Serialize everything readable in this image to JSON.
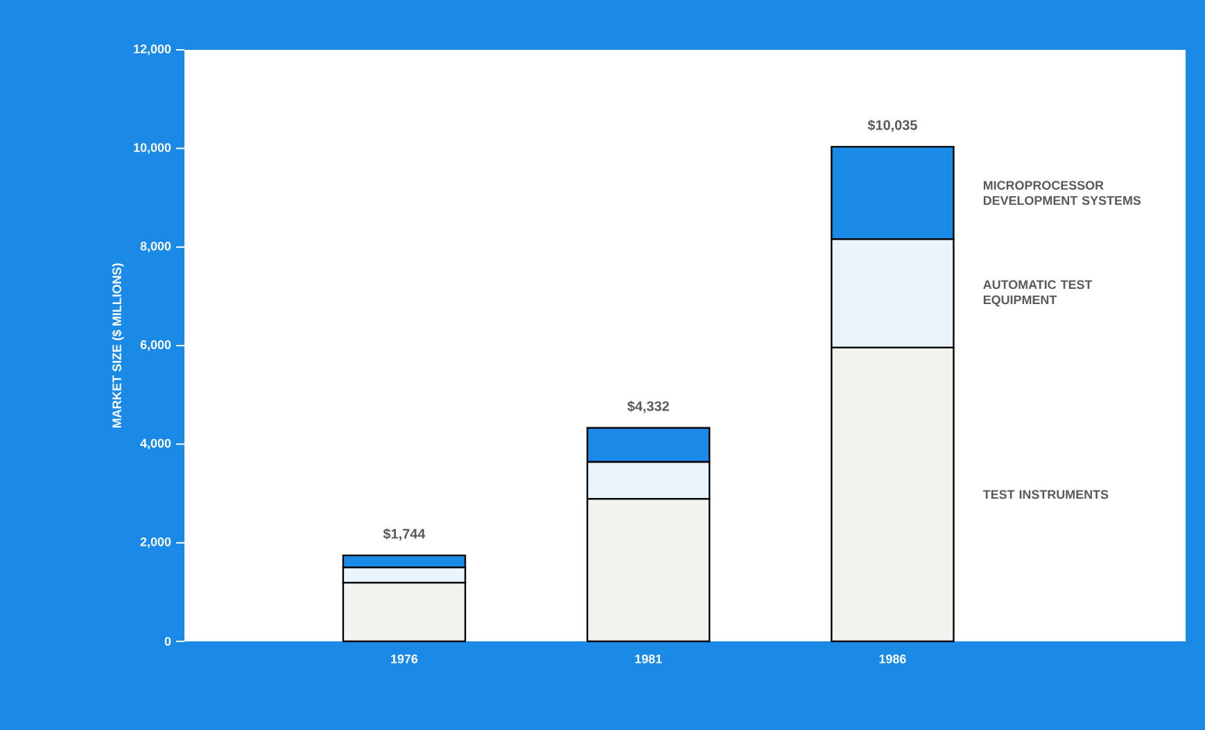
{
  "chart_data": {
    "type": "bar",
    "stacked": true,
    "ylabel": "MARKET SIZE ($ MILLIONS)",
    "categories": [
      "1976",
      "1981",
      "1986"
    ],
    "series": [
      {
        "name": "TEST INSTRUMENTS",
        "color": "#f2f2ee",
        "values": [
          1190,
          2890,
          5960
        ]
      },
      {
        "name": "AUTOMATIC TEST EQUIPMENT",
        "color": "#eaf4fc",
        "values": [
          310,
          750,
          2200
        ]
      },
      {
        "name": "MICROPROCESSOR DEVELOPMENT SYSTEMS",
        "color": "#1a8ae6",
        "values": [
          244,
          692,
          1875
        ]
      }
    ],
    "totals": [
      "$1,744",
      "$4,332",
      "$10,035"
    ],
    "ylim": [
      0,
      12000
    ],
    "yticks": [
      {
        "value": 0,
        "label": "0"
      },
      {
        "value": 2000,
        "label": "2,000"
      },
      {
        "value": 4000,
        "label": "4,000"
      },
      {
        "value": 6000,
        "label": "6,000"
      },
      {
        "value": 8000,
        "label": "8,000"
      },
      {
        "value": 10000,
        "label": "10,000"
      },
      {
        "value": 12000,
        "label": "12,000"
      }
    ]
  }
}
